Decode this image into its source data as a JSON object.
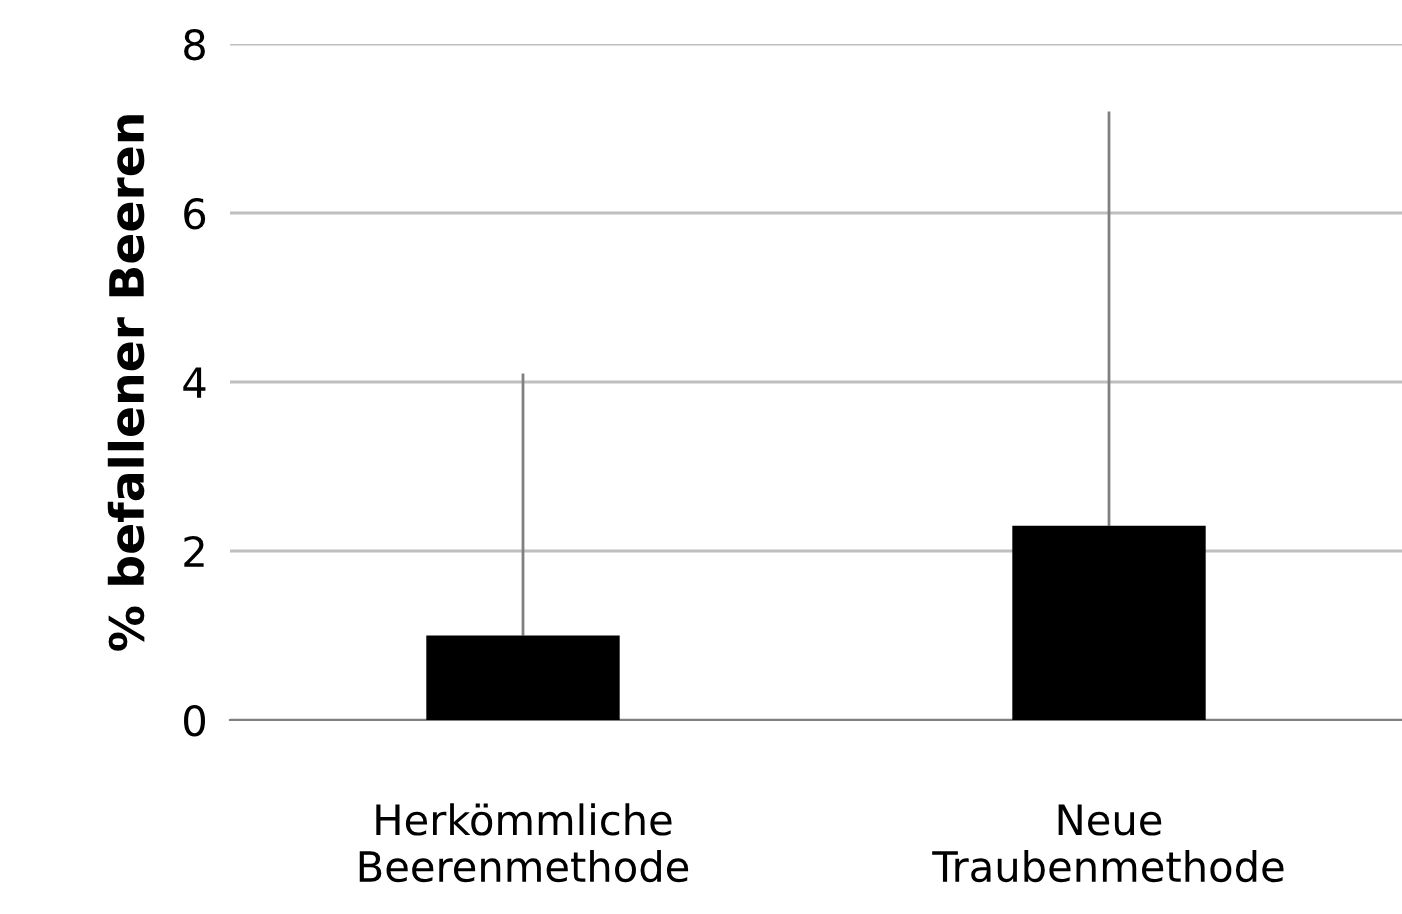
{
  "chart_data": {
    "type": "bar",
    "ylabel": "% befallener Beeren",
    "categories": [
      "Herkömmliche\nBeerenmethode",
      "Neue\nTraubenmethode"
    ],
    "values": [
      1.0,
      2.3
    ],
    "color": "#000000",
    "errors": [
      [
        1.0,
        4.1
      ],
      [
        2.3,
        7.2
      ]
    ],
    "ylim": [
      0,
      8
    ],
    "yticks": [
      0,
      2,
      4,
      6,
      8
    ],
    "grid": "y"
  }
}
